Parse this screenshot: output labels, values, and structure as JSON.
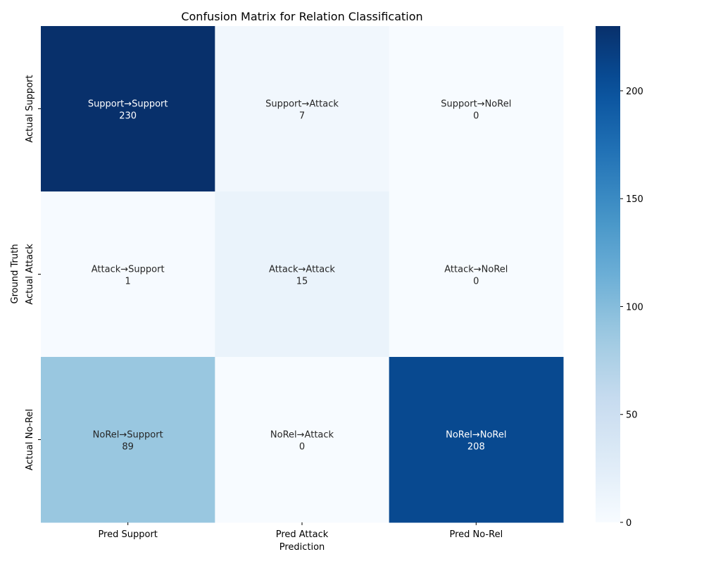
{
  "chart_data": {
    "type": "heatmap",
    "title": "Confusion Matrix for Relation Classification",
    "xlabel": "Prediction",
    "ylabel": "Ground Truth",
    "x_categories": [
      "Pred Support",
      "Pred Attack",
      "Pred No-Rel"
    ],
    "y_categories": [
      "Actual Support",
      "Actual Attack",
      "Actual No-Rel"
    ],
    "values": [
      [
        230,
        7,
        0
      ],
      [
        1,
        15,
        0
      ],
      [
        89,
        0,
        208
      ]
    ],
    "cell_labels": [
      [
        "Support→Support",
        "Support→Attack",
        "Support→NoRel"
      ],
      [
        "Attack→Support",
        "Attack→Attack",
        "Attack→NoRel"
      ],
      [
        "NoRel→Support",
        "NoRel→Attack",
        "NoRel→NoRel"
      ]
    ],
    "colormap": "Blues",
    "colorbar": {
      "range": [
        0,
        230
      ],
      "ticks": [
        0,
        50,
        100,
        150,
        200
      ]
    }
  }
}
